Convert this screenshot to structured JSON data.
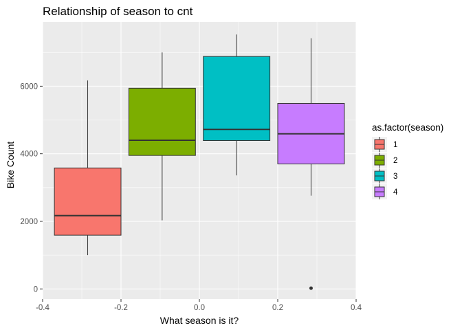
{
  "chart_data": {
    "type": "boxplot",
    "title": "Relationship of season to cnt",
    "xlabel": "What season is it?",
    "ylabel": "Bike Count",
    "xlim": [
      -0.4,
      0.4
    ],
    "ylim": [
      -300,
      7900
    ],
    "x_ticks": [
      -0.4,
      -0.2,
      0.0,
      0.2,
      0.4
    ],
    "x_tick_labels": [
      "-0.4",
      "-0.2",
      "0.0",
      "0.2",
      "0.4"
    ],
    "y_ticks": [
      0,
      2000,
      4000,
      6000
    ],
    "y_tick_labels": [
      "0",
      "2000",
      "4000",
      "6000"
    ],
    "grid": true,
    "legend": {
      "title": "as.factor(season)",
      "position": "right",
      "entries": [
        "1",
        "2",
        "3",
        "4"
      ]
    },
    "series": [
      {
        "name": "1",
        "color": "#F8766D",
        "x_center": -0.285,
        "box_half_width": 0.085,
        "whisker_low": 1000,
        "q1": 1590,
        "median": 2170,
        "q3": 3580,
        "whisker_high": 6170,
        "outliers": []
      },
      {
        "name": "2",
        "color": "#7CAE00",
        "x_center": -0.095,
        "box_half_width": 0.085,
        "whisker_low": 2030,
        "q1": 3950,
        "median": 4400,
        "q3": 5940,
        "whisker_high": 7000,
        "outliers": []
      },
      {
        "name": "3",
        "color": "#00BFC4",
        "x_center": 0.095,
        "box_half_width": 0.085,
        "whisker_low": 3360,
        "q1": 4390,
        "median": 4720,
        "q3": 6880,
        "whisker_high": 7530,
        "outliers": []
      },
      {
        "name": "4",
        "color": "#C77CFF",
        "x_center": 0.285,
        "box_half_width": 0.085,
        "whisker_low": 2760,
        "q1": 3700,
        "median": 4590,
        "q3": 5490,
        "whisker_high": 7420,
        "outliers": [
          22
        ]
      }
    ]
  }
}
